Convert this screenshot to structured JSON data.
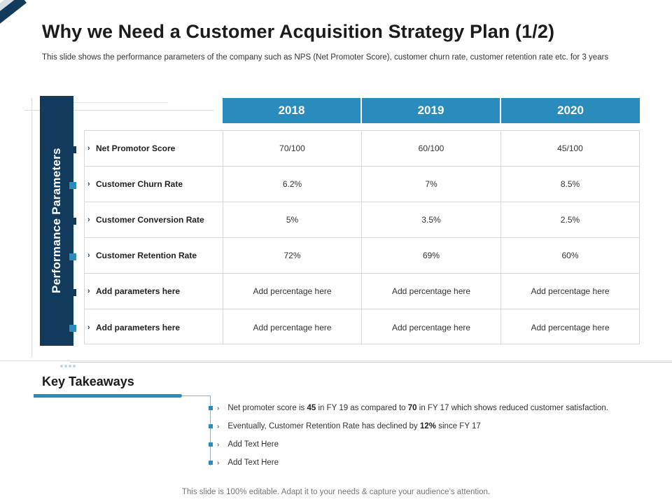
{
  "header": {
    "title": "Why we Need a Customer Acquisition Strategy Plan (1/2)",
    "subtitle": "This slide shows the performance parameters of the company such as NPS (Net Promoter Score), customer churn rate, customer retention rate etc. for 3 years"
  },
  "side_label": "Performance Parameters",
  "table": {
    "years": [
      "2018",
      "2019",
      "2020"
    ],
    "rows": [
      {
        "param": "Net Promotor Score",
        "values": [
          "70/100",
          "60/100",
          "45/100"
        ]
      },
      {
        "param": "Customer Churn Rate",
        "values": [
          "6.2%",
          "7%",
          "8.5%"
        ]
      },
      {
        "param": "Customer Conversion Rate",
        "values": [
          "5%",
          "3.5%",
          "2.5%"
        ]
      },
      {
        "param": "Customer Retention Rate",
        "values": [
          "72%",
          "69%",
          "60%"
        ]
      },
      {
        "param": "Add parameters here",
        "values": [
          "Add percentage here",
          "Add percentage here",
          "Add percentage here"
        ]
      },
      {
        "param": "Add parameters here",
        "values": [
          "Add percentage here",
          "Add percentage here",
          "Add percentage here"
        ]
      }
    ]
  },
  "takeaways": {
    "title": "Key Takeaways",
    "items": [
      {
        "a": "Net promoter score is",
        "b": "45",
        "c": "in FY 19 as compared to",
        "d": "70",
        "e": "in FY 17 which shows reduced customer satisfaction."
      },
      {
        "a": "Eventually, Customer Retention Rate has declined by",
        "b": "12%",
        "c": "since FY 17",
        "d": "",
        "e": ""
      },
      {
        "a": "Add Text Here",
        "b": "",
        "c": "",
        "d": "",
        "e": ""
      },
      {
        "a": "Add Text Here",
        "b": "",
        "c": "",
        "d": "",
        "e": ""
      }
    ]
  },
  "footer": "This slide is 100% editable. Adapt it to your needs & capture your audience’s attention.",
  "colors": {
    "navy": "#123a5c",
    "blue": "#2a8bbd"
  }
}
